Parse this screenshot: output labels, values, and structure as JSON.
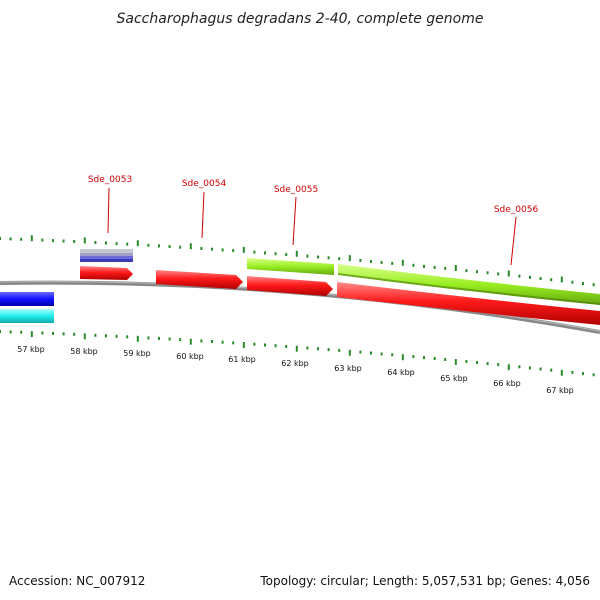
{
  "title": "Saccharophagus degradans 2-40, complete genome",
  "scale_labels": [
    "57 kbp",
    "58 kbp",
    "59 kbp",
    "60 kbp",
    "61 kbp",
    "62 kbp",
    "63 kbp",
    "64 kbp",
    "65 kbp",
    "66 kbp",
    "67 kbp"
  ],
  "gene_labels": [
    "Sde_0053",
    "Sde_0054",
    "Sde_0055",
    "Sde_0056"
  ],
  "footer": {
    "accession": "Accession: NC_007912",
    "topology": "Topology: circular; Length: 5,057,531 bp; Genes: 4,056"
  },
  "colors": {
    "forward_gene": "#ff1a1a",
    "lime_feature": "#99ee22",
    "blue_feature": "#1111ff",
    "cyan_feature": "#22eeee",
    "purple_feature": "#6a6ad8",
    "backbone": "#888888",
    "tick": "#2a8a2a",
    "label": "#cc0000"
  }
}
